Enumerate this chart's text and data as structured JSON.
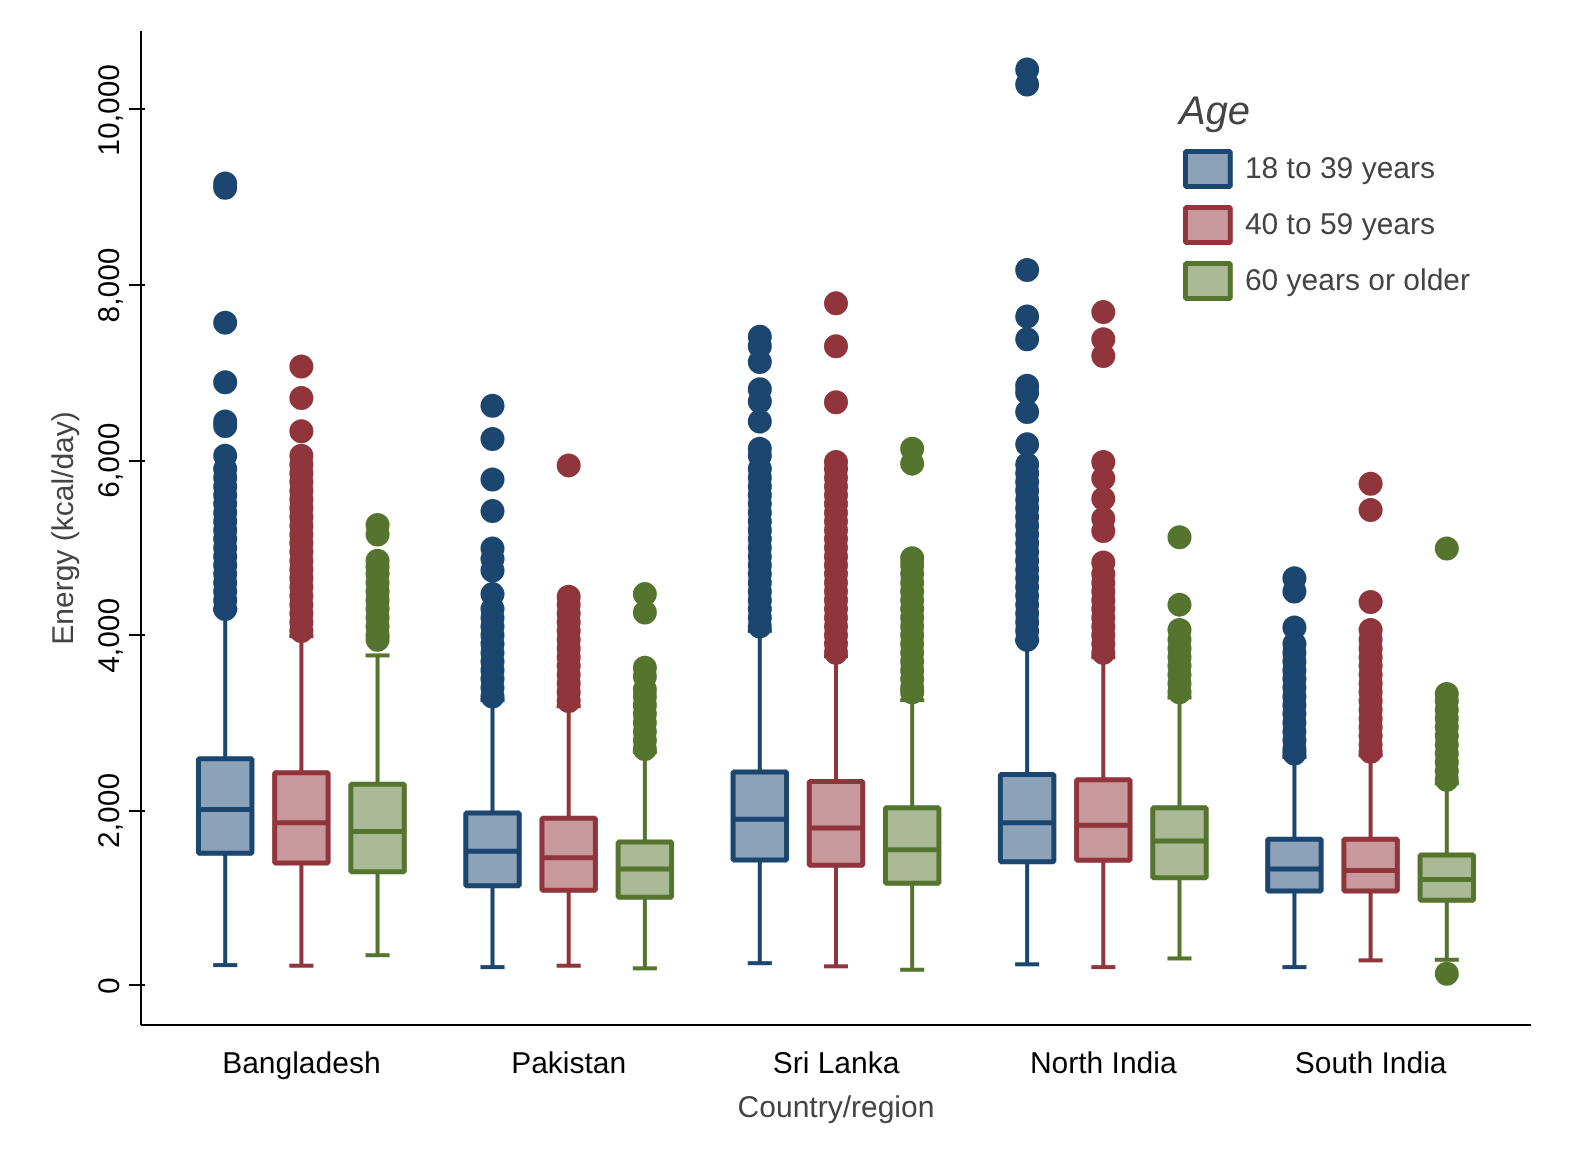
{
  "chart_data": {
    "type": "box",
    "xlabel": "Country/region",
    "ylabel": "Energy (kcal/day)",
    "legend_title": "Age",
    "legend": "top right",
    "grid": false,
    "categories": [
      "Bangladesh",
      "Pakistan",
      "Sri Lanka",
      "North India",
      "South India"
    ],
    "ylim": [
      -450,
      10900
    ],
    "yticks": [
      0,
      {
        "value": 2000,
        "label": "2,000"
      },
      {
        "value": 4000,
        "label": "4,000"
      },
      {
        "value": 6000,
        "label": "6,000"
      },
      {
        "value": 8000,
        "label": "8,000"
      },
      {
        "value": 10000,
        "label": "10,000"
      }
    ],
    "series": [
      {
        "name": "18 to 39 years",
        "color": "#1a4670",
        "boxes": [
          {
            "low": 234,
            "q1": 1510,
            "median": 2010,
            "q3": 2590,
            "high": 4290,
            "outliers": [
              9160,
              9110,
              7570,
              6890,
              6440,
              6390,
              6050,
              5900,
              5800,
              5700,
              5600,
              5500,
              5400,
              5300,
              5200,
              5100,
              5000,
              4900,
              4800,
              4700,
              4600,
              4500,
              4400,
              4300
            ]
          },
          {
            "low": 211,
            "q1": 1140,
            "median": 1535,
            "q3": 1970,
            "high": 3260,
            "outliers": [
              6620,
              6240,
              5780,
              5420,
              4990,
              4870,
              4740,
              4470,
              4300,
              4200,
              4100,
              4000,
              3900,
              3800,
              3700,
              3600,
              3500,
              3400,
              3300
            ]
          },
          {
            "low": 256,
            "q1": 1435,
            "median": 1900,
            "q3": 2440,
            "high": 4050,
            "outliers": [
              7410,
              7300,
              7120,
              6810,
              6670,
              6440,
              6130,
              6050,
              5900,
              5800,
              5700,
              5600,
              5500,
              5400,
              5300,
              5200,
              5100,
              5000,
              4900,
              4800,
              4700,
              4600,
              4500,
              4400,
              4300,
              4200,
              4100
            ]
          },
          {
            "low": 243,
            "q1": 1413,
            "median": 1860,
            "q3": 2410,
            "high": 3940,
            "outliers": [
              10460,
              10290,
              8170,
              7640,
              7380,
              6850,
              6770,
              6550,
              6180,
              5950,
              5850,
              5750,
              5650,
              5550,
              5450,
              5350,
              5250,
              5150,
              5050,
              4950,
              4850,
              4750,
              4650,
              4550,
              4450,
              4350,
              4250,
              4150,
              4050,
              3950
            ]
          },
          {
            "low": 211,
            "q1": 1080,
            "median": 1330,
            "q3": 1670,
            "high": 2610,
            "outliers": [
              4650,
              4500,
              4090,
              3900,
              3800,
              3700,
              3600,
              3500,
              3400,
              3300,
              3200,
              3100,
              3000,
              2900,
              2800,
              2700,
              2650
            ]
          }
        ]
      },
      {
        "name": "40 to 59 years",
        "color": "#90353b",
        "boxes": [
          {
            "low": 227,
            "q1": 1400,
            "median": 1860,
            "q3": 2430,
            "high": 3990,
            "outliers": [
              7070,
              6710,
              6330,
              6050,
              5950,
              5850,
              5750,
              5650,
              5550,
              5450,
              5350,
              5250,
              5150,
              5050,
              4950,
              4850,
              4750,
              4650,
              4550,
              4450,
              4350,
              4250,
              4150,
              4050
            ]
          },
          {
            "low": 227,
            "q1": 1090,
            "median": 1460,
            "q3": 1910,
            "high": 3190,
            "outliers": [
              5940,
              4440,
              4350,
              4250,
              4150,
              4050,
              3950,
              3850,
              3750,
              3650,
              3550,
              3450,
              3350,
              3250
            ]
          },
          {
            "low": 220,
            "q1": 1375,
            "median": 1800,
            "q3": 2330,
            "high": 3760,
            "outliers": [
              7790,
              7300,
              6660,
              5980,
              5900,
              5800,
              5700,
              5600,
              5500,
              5400,
              5300,
              5200,
              5100,
              5000,
              4900,
              4800,
              4700,
              4600,
              4500,
              4400,
              4300,
              4200,
              4100,
              4000,
              3900,
              3800
            ]
          },
          {
            "low": 211,
            "q1": 1430,
            "median": 1830,
            "q3": 2350,
            "high": 3750,
            "outliers": [
              7690,
              7380,
              7190,
              5980,
              5790,
              5560,
              5330,
              5190,
              4830,
              4700,
              4600,
              4500,
              4400,
              4300,
              4200,
              4100,
              4000,
              3900,
              3800
            ]
          },
          {
            "low": 288,
            "q1": 1080,
            "median": 1315,
            "q3": 1670,
            "high": 2630,
            "outliers": [
              5730,
              5430,
              4380,
              4060,
              3950,
              3850,
              3750,
              3650,
              3550,
              3450,
              3350,
              3250,
              3150,
              3050,
              2950,
              2850,
              2750,
              2670
            ]
          }
        ]
      },
      {
        "name": "60 years or older",
        "color": "#55752f",
        "boxes": [
          {
            "low": 347,
            "q1": 1300,
            "median": 1760,
            "q3": 2300,
            "high": 3770,
            "outliers": [
              5260,
              5150,
              4850,
              4780,
              4700,
              4600,
              4500,
              4400,
              4300,
              4200,
              4100,
              4000,
              3950
            ]
          },
          {
            "low": 197,
            "q1": 1010,
            "median": 1330,
            "q3": 1640,
            "high": 2670,
            "outliers": [
              4470,
              4260,
              3630,
              3530,
              3380,
              3300,
              3200,
              3100,
              3000,
              2900,
              2800,
              2700
            ]
          },
          {
            "low": 181,
            "q1": 1170,
            "median": 1550,
            "q3": 2030,
            "high": 3260,
            "outliers": [
              6130,
              5960,
              4880,
              4800,
              4700,
              4600,
              4500,
              4400,
              4300,
              4200,
              4100,
              4000,
              3900,
              3800,
              3700,
              3600,
              3500,
              3400,
              3350
            ]
          },
          {
            "low": 310,
            "q1": 1230,
            "median": 1650,
            "q3": 2030,
            "high": 3290,
            "outliers": [
              5120,
              4350,
              4060,
              3950,
              3850,
              3750,
              3650,
              3550,
              3450,
              3350
            ]
          },
          {
            "low": 295,
            "q1": 975,
            "median": 1210,
            "q3": 1490,
            "high": 2310,
            "outliers": [
              4990,
              3330,
              3250,
              3150,
              3050,
              2950,
              2850,
              2750,
              2650,
              2550,
              2450,
              2350,
              136
            ]
          }
        ]
      }
    ]
  }
}
